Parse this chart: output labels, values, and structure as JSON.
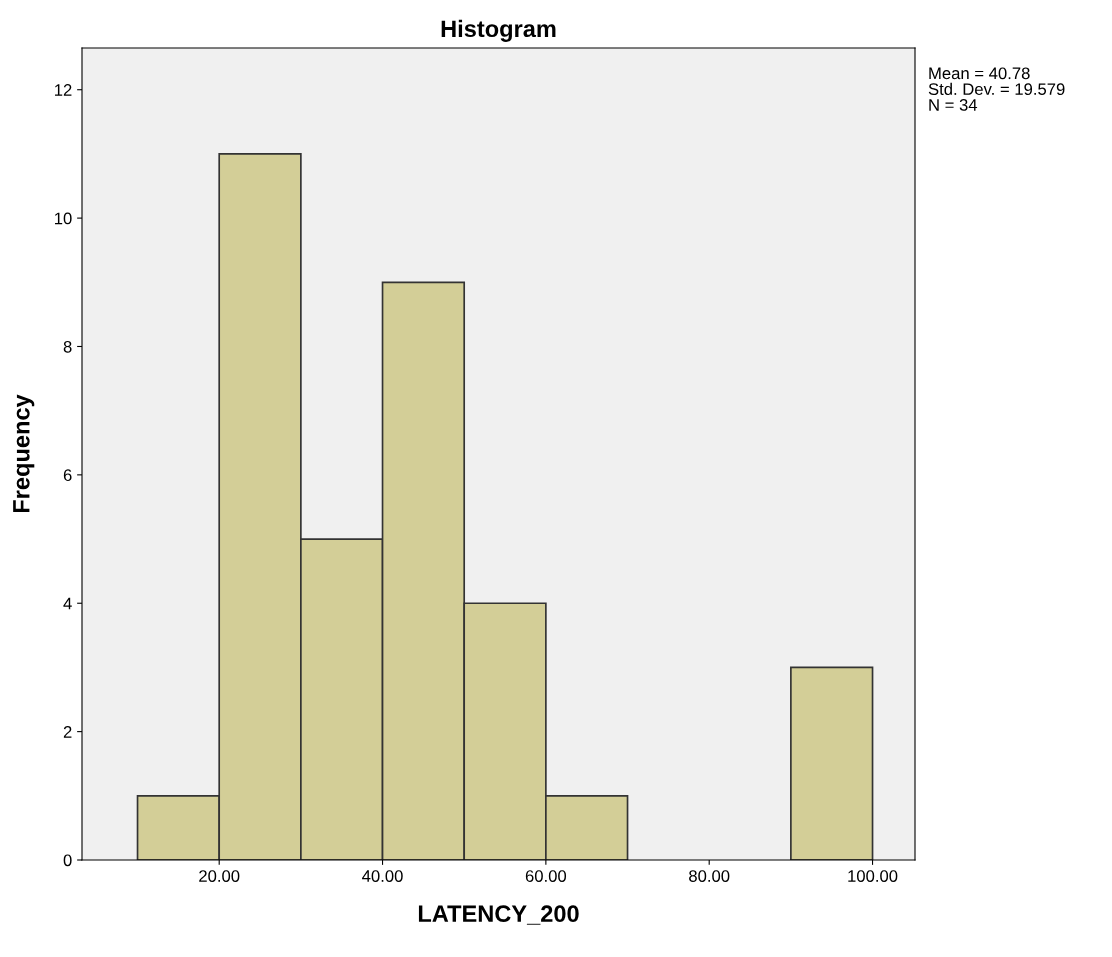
{
  "chart_data": {
    "type": "histogram",
    "title": "Histogram",
    "xlabel": "LATENCY_200",
    "ylabel": "Frequency",
    "bins": [
      10,
      20,
      30,
      40,
      50,
      60,
      70,
      80,
      90,
      100
    ],
    "values": [
      1,
      11,
      5,
      9,
      4,
      1,
      0,
      0,
      3
    ],
    "color": "#d3ce97",
    "xlim": [
      3.2,
      105.2
    ],
    "ylim": [
      0,
      12.65
    ],
    "xticks": [
      {
        "value": 20,
        "label": "20.00"
      },
      {
        "value": 40,
        "label": "40.00"
      },
      {
        "value": 60,
        "label": "60.00"
      },
      {
        "value": 80,
        "label": "80.00"
      },
      {
        "value": 100,
        "label": "100.00"
      }
    ],
    "yticks": [
      0,
      2,
      4,
      6,
      8,
      10,
      12
    ],
    "grid": false,
    "legend": false,
    "annotations": [
      "Mean = 40.78",
      "Std. Dev. = 19.579",
      "N = 34"
    ]
  }
}
